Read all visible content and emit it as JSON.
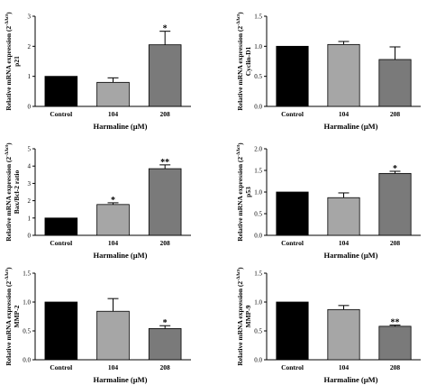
{
  "colors": {
    "Control": "#000000",
    "104": "#a6a6a6",
    "208": "#7a7a7a"
  },
  "chart_data": [
    {
      "type": "bar",
      "ylabel_main": "Relative mRNA expression (2",
      "ylabel_sup": "-ΔΔct",
      "ylabel_close": ")",
      "ylabel_sub": "p21",
      "xlabel": "Harmaline (µM)",
      "categories": [
        "Control",
        "104",
        "208"
      ],
      "values": [
        1.0,
        0.8,
        2.05
      ],
      "errors": [
        0,
        0.15,
        0.45
      ],
      "significance": [
        "",
        "",
        "*"
      ],
      "ylim": [
        0,
        3
      ],
      "yticks": [
        0,
        1,
        2,
        3
      ],
      "ytick_labels": [
        "0",
        "1",
        "2",
        "3"
      ]
    },
    {
      "type": "bar",
      "ylabel_main": "Relative mRNA expression (2",
      "ylabel_sup": "-ΔΔct",
      "ylabel_close": ")",
      "ylabel_sub": "Cyclin-D1",
      "xlabel": "Harmaline (µM)",
      "categories": [
        "Control",
        "104",
        "208"
      ],
      "values": [
        1.0,
        1.03,
        0.78
      ],
      "errors": [
        0,
        0.05,
        0.21
      ],
      "significance": [
        "",
        "",
        ""
      ],
      "ylim": [
        0,
        1.5
      ],
      "yticks": [
        0,
        0.5,
        1.0,
        1.5
      ],
      "ytick_labels": [
        "0.0",
        "0.5",
        "1.0",
        "1.5"
      ]
    },
    {
      "type": "bar",
      "ylabel_main": "Relative mRNA expression (2",
      "ylabel_sup": "-ΔΔct",
      "ylabel_close": ")",
      "ylabel_sub": "Bax/Bcl-2 ratio",
      "xlabel": "Harmaline (µM)",
      "categories": [
        "Control",
        "104",
        "208"
      ],
      "values": [
        1.0,
        1.78,
        3.85
      ],
      "errors": [
        0,
        0.1,
        0.22
      ],
      "significance": [
        "",
        "*",
        "**"
      ],
      "ylim": [
        0,
        5
      ],
      "yticks": [
        0,
        1,
        2,
        3,
        4,
        5
      ],
      "ytick_labels": [
        "0",
        "1",
        "2",
        "3",
        "4",
        "5"
      ]
    },
    {
      "type": "bar",
      "ylabel_main": "Relative mRNA expression (2",
      "ylabel_sup": "-ΔΔct",
      "ylabel_close": ")",
      "ylabel_sub": "p53",
      "xlabel": "Harmaline (µM)",
      "categories": [
        "Control",
        "104",
        "208"
      ],
      "values": [
        1.0,
        0.87,
        1.43
      ],
      "errors": [
        0,
        0.11,
        0.05
      ],
      "significance": [
        "",
        "",
        "*"
      ],
      "ylim": [
        0,
        2
      ],
      "yticks": [
        0,
        0.5,
        1.0,
        1.5,
        2.0
      ],
      "ytick_labels": [
        "0.0",
        "0.5",
        "1.0",
        "1.5",
        "2.0"
      ]
    },
    {
      "type": "bar",
      "ylabel_main": "Relative mRNA expression (2",
      "ylabel_sup": "-ΔΔct",
      "ylabel_close": ")",
      "ylabel_sub": "MMP-2",
      "xlabel": "Harmaline (µM)",
      "categories": [
        "Control",
        "104",
        "208"
      ],
      "values": [
        1.0,
        0.84,
        0.54
      ],
      "errors": [
        0,
        0.22,
        0.05
      ],
      "significance": [
        "",
        "",
        "*"
      ],
      "ylim": [
        0,
        1.5
      ],
      "yticks": [
        0,
        0.5,
        1.0,
        1.5
      ],
      "ytick_labels": [
        "0.0",
        "0.5",
        "1.0",
        "1.5"
      ]
    },
    {
      "type": "bar",
      "ylabel_main": "Relative mRNA expression (2",
      "ylabel_sup": "-ΔΔct",
      "ylabel_close": ")",
      "ylabel_sub": "MMP-9",
      "xlabel": "Harmaline (µM)",
      "categories": [
        "Control",
        "104",
        "208"
      ],
      "values": [
        1.0,
        0.87,
        0.58
      ],
      "errors": [
        0,
        0.07,
        0.02
      ],
      "significance": [
        "",
        "",
        "**"
      ],
      "ylim": [
        0,
        1.5
      ],
      "yticks": [
        0,
        0.5,
        1.0,
        1.5
      ],
      "ytick_labels": [
        "0.0",
        "0.5",
        "1.0",
        "1.5"
      ]
    }
  ]
}
